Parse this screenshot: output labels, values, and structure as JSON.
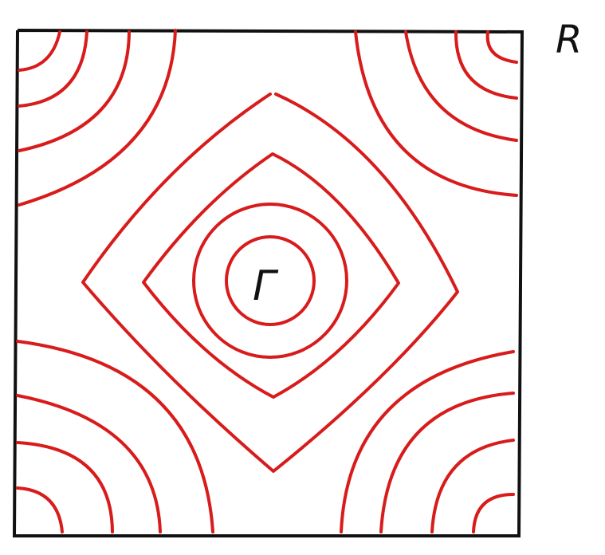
{
  "diagram": {
    "corner_label": "R",
    "center_label": "Γ",
    "colors": {
      "contour": "#d81b1b",
      "frame": "#111111",
      "text": "#111111",
      "background": "#ffffff"
    }
  }
}
